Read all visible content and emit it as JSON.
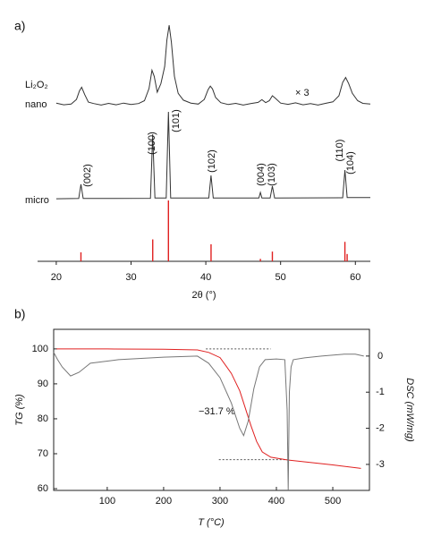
{
  "chart_data": [
    {
      "type": "line",
      "panel_label": "a)",
      "xlabel": "2θ (°)",
      "xlim": [
        17.5,
        62
      ],
      "xticks": [
        20,
        30,
        40,
        50,
        60
      ],
      "ylim": [
        0,
        100
      ],
      "annotations": [
        "Li₂O₂",
        "× 3"
      ],
      "peak_labels": [
        "(002)",
        "(100)",
        "(101)",
        "(102)",
        "(004)",
        "(103)",
        "(110)",
        "(104)"
      ],
      "series": [
        {
          "name": "nano",
          "color": "#333333",
          "x": [
            20,
            21,
            22,
            22.7,
            23.1,
            23.4,
            23.8,
            24.3,
            25,
            26,
            27,
            28,
            29,
            30,
            31,
            31.8,
            32.4,
            32.8,
            33.1,
            33.5,
            34,
            34.5,
            34.8,
            35.1,
            35.4,
            35.8,
            36.3,
            37,
            38,
            39,
            39.8,
            40.3,
            40.6,
            40.9,
            41.3,
            42,
            43,
            44,
            45,
            46,
            47,
            47.5,
            48,
            48.5,
            48.9,
            49.3,
            50,
            51,
            52,
            53,
            54,
            55,
            56,
            57,
            57.8,
            58.3,
            58.7,
            59.1,
            59.6,
            60.3,
            61,
            62
          ],
          "values": [
            65,
            64.3,
            64.6,
            66.5,
            70,
            71.5,
            68.5,
            65.4,
            64.8,
            64.2,
            64.9,
            64.3,
            65,
            64.4,
            64.8,
            66,
            71,
            78.5,
            76,
            69.5,
            73,
            80,
            91,
            97,
            90,
            76,
            69,
            66.2,
            65,
            64.6,
            66.5,
            70.5,
            72,
            70.8,
            67.3,
            65.2,
            64.4,
            64.9,
            64.2,
            64.8,
            65.3,
            66.4,
            65.2,
            66,
            68,
            67,
            65,
            64.5,
            65.1,
            64.3,
            64.8,
            64.2,
            64.9,
            65.5,
            68,
            73.5,
            75.5,
            73,
            69,
            66,
            64.9,
            64.6
          ]
        },
        {
          "name": "micro",
          "color": "#333333",
          "x": [
            20,
            23.0,
            23.3,
            23.6,
            32.6,
            32.9,
            33.2,
            34.7,
            35.0,
            35.3,
            40.4,
            40.7,
            41.0,
            47.1,
            47.3,
            47.5,
            48.6,
            48.9,
            49.2,
            58.3,
            58.6,
            58.9,
            62
          ],
          "values": [
            25.7,
            25.8,
            31.6,
            25.8,
            25.9,
            52.2,
            26,
            26,
            61.4,
            26,
            26,
            35.3,
            26,
            26,
            28.3,
            26,
            26,
            30.9,
            26,
            26.1,
            37.5,
            26.2,
            26.2
          ]
        }
      ],
      "sticks": {
        "color": "#e02020",
        "x": [
          23.3,
          32.9,
          35.0,
          40.7,
          47.3,
          48.9,
          58.6,
          58.9
        ],
        "values": [
          3.7,
          9,
          25,
          7,
          1,
          4,
          8,
          3
        ]
      }
    },
    {
      "type": "line",
      "panel_label": "b)",
      "xlabel": "T (°C)",
      "ylabel": "TG (%)",
      "y2label": "DSC (mW/mg)",
      "xlim": [
        5,
        565
      ],
      "xticks": [
        100,
        200,
        300,
        400,
        500
      ],
      "ylim": [
        59.5,
        105.6
      ],
      "yticks": [
        60,
        70,
        80,
        90,
        100
      ],
      "y2lim": [
        -3.72,
        0.74
      ],
      "y2ticks": [
        -3,
        -2,
        -1,
        0
      ],
      "annotations": [
        "−31.7 %"
      ],
      "hlines": [
        {
          "value": 100,
          "xlim": [
            275,
            390
          ]
        },
        {
          "value": 68.3,
          "xlim": [
            298,
            420
          ]
        }
      ],
      "series": [
        {
          "color": "#e02020",
          "x": [
            10,
            100,
            200,
            260,
            280,
            300,
            320,
            335,
            345,
            355,
            365,
            375,
            390,
            420,
            460,
            500,
            550
          ],
          "values": [
            100,
            100,
            99.9,
            99.7,
            99,
            97.5,
            93,
            88,
            83,
            78,
            73.5,
            70.5,
            69,
            68.2,
            67.5,
            66.8,
            65.8
          ]
        },
        {
          "color": "#777777",
          "axis": "y2",
          "x": [
            5,
            12,
            20,
            35,
            50,
            70,
            120,
            200,
            260,
            280,
            300,
            320,
            335,
            342,
            350,
            360,
            370,
            380,
            400,
            415,
            419,
            421,
            423,
            426,
            430,
            450,
            480,
            520,
            540,
            555
          ],
          "values": [
            0.1,
            -0.1,
            -0.3,
            -0.55,
            -0.45,
            -0.2,
            -0.1,
            -0.03,
            0.0,
            -0.2,
            -0.6,
            -1.3,
            -2.0,
            -2.2,
            -1.8,
            -0.9,
            -0.3,
            -0.1,
            -0.08,
            -0.1,
            -1.5,
            -3.7,
            -1.0,
            -0.3,
            -0.1,
            -0.05,
            0.0,
            0.05,
            0.05,
            0.0
          ]
        }
      ]
    }
  ]
}
